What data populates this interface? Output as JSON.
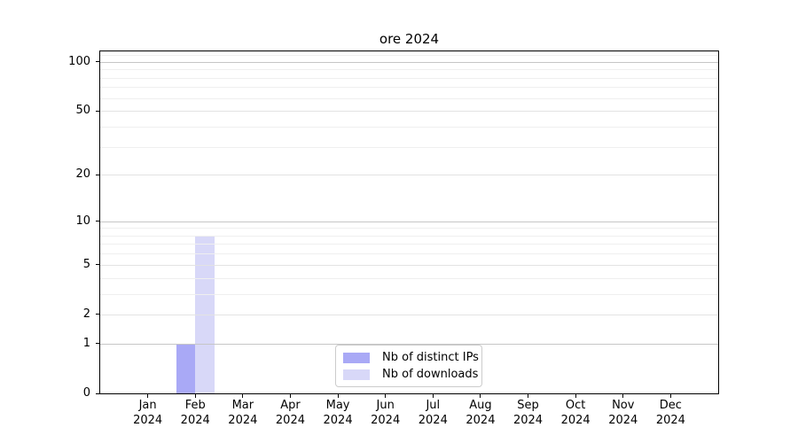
{
  "chart_data": {
    "type": "bar",
    "title": "ore 2024",
    "scale": "log1p",
    "grid": true,
    "legend_position": "lower center",
    "categories": [
      "Jan",
      "Feb",
      "Mar",
      "Apr",
      "May",
      "Jun",
      "Jul",
      "Aug",
      "Sep",
      "Oct",
      "Nov",
      "Dec"
    ],
    "category_year": "2024",
    "series": [
      {
        "name": "Nb of distinct IPs",
        "color": "#a9a9f6",
        "values": [
          0,
          1,
          0,
          0,
          0,
          0,
          0,
          0,
          0,
          0,
          0,
          0
        ]
      },
      {
        "name": "Nb of downloads",
        "color": "#d8d8f8",
        "values": [
          0,
          8,
          0,
          0,
          0,
          0,
          0,
          0,
          0,
          0,
          0,
          0
        ]
      }
    ],
    "yticks": [
      0,
      1,
      2,
      5,
      10,
      20,
      50,
      100
    ],
    "major_grid_yticks": [
      1,
      10,
      100
    ],
    "minor_yticks": [
      3,
      4,
      6,
      7,
      8,
      9,
      30,
      40,
      60,
      70,
      80,
      90,
      110
    ],
    "ylim": [
      0,
      115
    ],
    "xlabel": "",
    "ylabel": ""
  }
}
